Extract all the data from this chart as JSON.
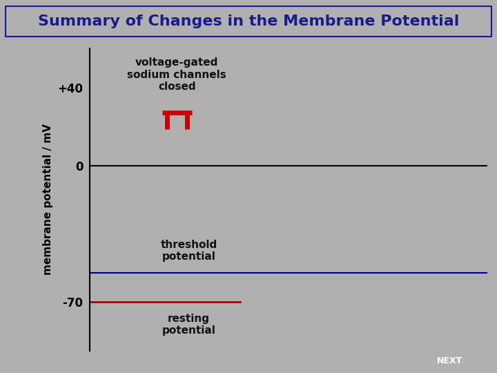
{
  "title": "Summary of Changes in the Membrane Potential",
  "title_color": "#1a1a8c",
  "title_bg_color": "#f0f0d8",
  "title_border_color": "#1a1a8c",
  "plot_bg_color": "#fafae0",
  "outer_bg_color": "#b0b0b0",
  "ylabel": "membrane potential / mV",
  "yticks": [
    40,
    0,
    -70
  ],
  "ytick_labels": [
    "+40",
    "0",
    "-70"
  ],
  "y_zero_line_color": "#000000",
  "y_zero_line_y": 0,
  "threshold_line_color": "#00008b",
  "threshold_line_y": -55,
  "resting_line_color": "#aa0000",
  "resting_line_y": -70,
  "resting_line_xend": 0.38,
  "annotation_vg_text": "voltage-gated\nsodium channels\nclosed",
  "channel_symbol_color": "#cc0000",
  "annotation_threshold_text": "threshold\npotential",
  "annotation_resting_text": "resting\npotential",
  "ylim": [
    -95,
    60
  ],
  "xlim": [
    0,
    1
  ],
  "next_button_text": "NEXT",
  "next_button_color": "#2f4f6f",
  "next_button_text_color": "#ffffff"
}
